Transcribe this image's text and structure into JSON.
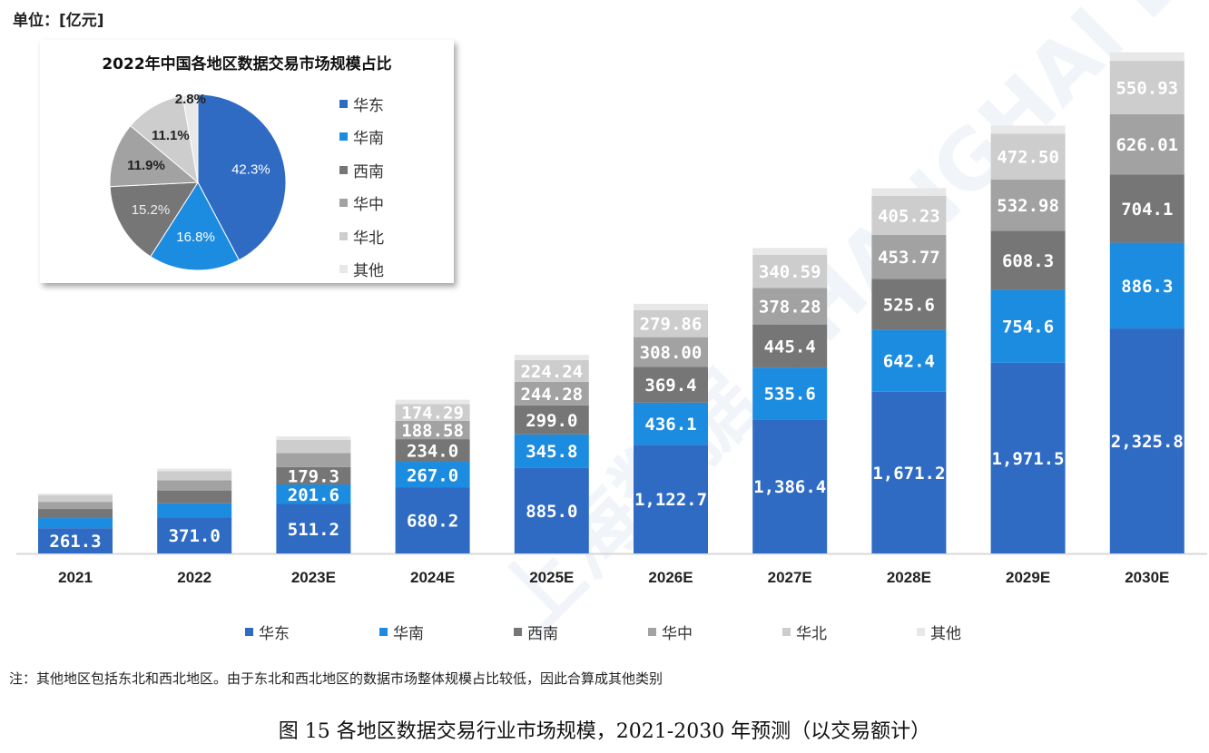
{
  "unit_label": "单位：[亿元]",
  "watermark": "上海数据 SHANGHAI DATA",
  "colors": {
    "华东": "#2f6bc3",
    "华南": "#1c8ce0",
    "西南": "#767676",
    "华中": "#a2a2a2",
    "华北": "#cdcdcd",
    "其他": "#e8e8e8"
  },
  "legend": [
    "华东",
    "华南",
    "西南",
    "华中",
    "华北",
    "其他"
  ],
  "note": "注：其他地区包括东北和西北地区。由于东北和西北地区的数据市场整体规模占比较低，因此合算成其他类别",
  "caption": "图 15 各地区数据交易行业市场规模，2021-2030 年预测（以交易额计）",
  "chart_data": [
    {
      "type": "bar",
      "stacked": true,
      "title": "",
      "ylabel": "亿元",
      "categories": [
        "2021",
        "2022",
        "2023E",
        "2024E",
        "2025E",
        "2026E",
        "2027E",
        "2028E",
        "2029E",
        "2030E"
      ],
      "series": [
        {
          "name": "华东",
          "values": [
            261.3,
            371.0,
            511.2,
            680.2,
            885.0,
            1122.7,
            1386.4,
            1671.2,
            1971.5,
            2325.8
          ],
          "labels": [
            "261.3",
            "371.0",
            "511.2",
            "680.2",
            "885.0",
            "1,122.7",
            "1,386.4",
            "1,671.2",
            "1,971.5",
            "2,325.8"
          ]
        },
        {
          "name": "华南",
          "values": [
            104,
            147,
            201.6,
            267.0,
            345.8,
            436.1,
            535.6,
            642.4,
            754.6,
            886.3
          ],
          "labels": [
            null,
            null,
            "201.6",
            "267.0",
            "345.8",
            "436.1",
            "535.6",
            "642.4",
            "754.6",
            "886.3"
          ]
        },
        {
          "name": "西南",
          "values": [
            94,
            133,
            179.3,
            234.0,
            299.0,
            369.4,
            445.4,
            525.6,
            608.3,
            704.1
          ],
          "labels": [
            null,
            null,
            "179.3",
            "234.0",
            "299.0",
            "369.4",
            "445.4",
            "525.6",
            "608.3",
            "704.1"
          ]
        },
        {
          "name": "华中",
          "values": [
            74,
            104,
            145,
            188.58,
            244.28,
            308.0,
            378.28,
            453.77,
            532.98,
            626.01
          ],
          "labels": [
            null,
            null,
            null,
            "188.58",
            "244.28",
            "308.00",
            "378.28",
            "453.77",
            "532.98",
            "626.01"
          ]
        },
        {
          "name": "华北",
          "values": [
            69,
            97,
            138,
            174.29,
            224.24,
            279.86,
            340.59,
            405.23,
            472.5,
            550.93
          ],
          "labels": [
            null,
            null,
            null,
            "174.29",
            "224.24",
            "279.86",
            "340.59",
            "405.23",
            "472.50",
            "550.93"
          ]
        },
        {
          "name": "其他",
          "values": [
            17,
            25,
            35,
            45,
            55,
            65,
            72,
            78,
            84,
            90
          ],
          "labels": [
            null,
            null,
            null,
            null,
            null,
            null,
            null,
            null,
            null,
            null
          ]
        }
      ]
    },
    {
      "type": "pie",
      "title": "2022年中国各地区数据交易市场规模占比",
      "categories": [
        "华东",
        "华南",
        "西南",
        "华中",
        "华北",
        "其他"
      ],
      "values": [
        42.3,
        16.8,
        15.2,
        11.9,
        11.1,
        2.8
      ],
      "labels": [
        "42.3%",
        "16.8%",
        "15.2%",
        "11.9%",
        "11.1%",
        "2.8%"
      ],
      "legend_position": "right"
    }
  ]
}
